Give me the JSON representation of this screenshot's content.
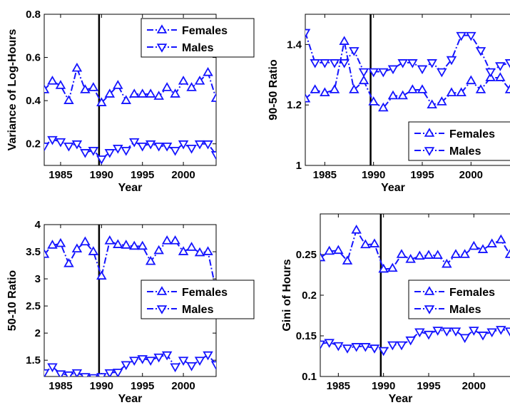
{
  "chart_data": [
    {
      "type": "line",
      "title": "",
      "xlabel": "Year",
      "ylabel": "Variance of Log-Hours",
      "xlim": [
        1983,
        2004
      ],
      "ylim": [
        0.1,
        0.8
      ],
      "xticks": [
        1985,
        1990,
        1995,
        2000
      ],
      "yticks": [
        0.2,
        0.4,
        0.6,
        0.8
      ],
      "xtick_labels": [
        "1985",
        "1990",
        "1995",
        "2000"
      ],
      "ytick_labels": [
        "0.2",
        "0.4",
        "0.6",
        "0.8"
      ],
      "vline": 1989.7,
      "legend_position": "top-right",
      "grid": false,
      "x": [
        1983,
        1984,
        1985,
        1986,
        1987,
        1988,
        1989,
        1990,
        1991,
        1992,
        1993,
        1994,
        1995,
        1996,
        1997,
        1998,
        1999,
        2000,
        2001,
        2002,
        2003,
        2004
      ],
      "series": [
        {
          "name": "Females",
          "marker": "triangle-up",
          "color": "#1414ff",
          "values": [
            0.45,
            0.49,
            0.47,
            0.4,
            0.55,
            0.45,
            0.46,
            0.39,
            0.43,
            0.47,
            0.4,
            0.43,
            0.43,
            0.43,
            0.42,
            0.46,
            0.43,
            0.49,
            0.46,
            0.49,
            0.53,
            0.41
          ]
        },
        {
          "name": "Males",
          "marker": "triangle-down",
          "color": "#1414ff",
          "values": [
            0.19,
            0.22,
            0.21,
            0.19,
            0.2,
            0.16,
            0.17,
            0.13,
            0.16,
            0.18,
            0.17,
            0.21,
            0.19,
            0.2,
            0.19,
            0.19,
            0.17,
            0.2,
            0.18,
            0.2,
            0.2,
            0.15
          ]
        }
      ]
    },
    {
      "type": "line",
      "title": "",
      "xlabel": "Year",
      "ylabel": "90-50 Ratio",
      "xlim": [
        1983,
        2004
      ],
      "ylim": [
        1.0,
        1.5
      ],
      "xticks": [
        1985,
        1990,
        1995,
        2000
      ],
      "yticks": [
        1.0,
        1.2,
        1.4
      ],
      "xtick_labels": [
        "1985",
        "1990",
        "1995",
        "2000"
      ],
      "ytick_labels": [
        "1",
        "1.2",
        "1.4"
      ],
      "vline": 1989.7,
      "legend_position": "bottom-right",
      "grid": false,
      "x": [
        1983,
        1984,
        1985,
        1986,
        1987,
        1988,
        1989,
        1990,
        1991,
        1992,
        1993,
        1994,
        1995,
        1996,
        1997,
        1998,
        1999,
        2000,
        2001,
        2002,
        2003,
        2004
      ],
      "series": [
        {
          "name": "Females",
          "marker": "triangle-up",
          "color": "#1414ff",
          "values": [
            1.22,
            1.25,
            1.24,
            1.25,
            1.41,
            1.25,
            1.28,
            1.21,
            1.19,
            1.23,
            1.23,
            1.25,
            1.25,
            1.2,
            1.21,
            1.24,
            1.24,
            1.28,
            1.25,
            1.29,
            1.29,
            1.25
          ]
        },
        {
          "name": "Males",
          "marker": "triangle-down",
          "color": "#1414ff",
          "values": [
            1.44,
            1.34,
            1.34,
            1.34,
            1.34,
            1.38,
            1.31,
            1.31,
            1.31,
            1.32,
            1.34,
            1.34,
            1.32,
            1.34,
            1.31,
            1.35,
            1.43,
            1.43,
            1.38,
            1.31,
            1.33,
            1.34
          ]
        }
      ]
    },
    {
      "type": "line",
      "title": "",
      "xlabel": "Year",
      "ylabel": "50-10 Ratio",
      "xlim": [
        1983,
        2004
      ],
      "ylim": [
        1.2,
        4.0
      ],
      "xticks": [
        1985,
        1990,
        1995,
        2000
      ],
      "yticks": [
        1.5,
        2.0,
        2.5,
        3.0,
        3.5,
        4.0
      ],
      "xtick_labels": [
        "1985",
        "1990",
        "1995",
        "2000"
      ],
      "ytick_labels": [
        "1.5",
        "2",
        "2.5",
        "3",
        "3.5",
        "4"
      ],
      "vline": 1989.7,
      "legend_position": "center-right",
      "grid": false,
      "x": [
        1983,
        1984,
        1985,
        1986,
        1987,
        1988,
        1989,
        1990,
        1991,
        1992,
        1993,
        1994,
        1995,
        1996,
        1997,
        1998,
        1999,
        2000,
        2001,
        2002,
        2003,
        2004
      ],
      "series": [
        {
          "name": "Females",
          "marker": "triangle-up",
          "color": "#1414ff",
          "values": [
            3.45,
            3.62,
            3.65,
            3.28,
            3.55,
            3.68,
            3.5,
            3.05,
            3.7,
            3.63,
            3.62,
            3.6,
            3.6,
            3.32,
            3.52,
            3.7,
            3.7,
            3.5,
            3.58,
            3.48,
            3.5,
            2.78
          ]
        },
        {
          "name": "Males",
          "marker": "triangle-down",
          "color": "#1414ff",
          "values": [
            1.27,
            1.38,
            1.25,
            1.23,
            1.27,
            1.2,
            1.18,
            1.2,
            1.27,
            1.28,
            1.42,
            1.5,
            1.53,
            1.5,
            1.56,
            1.6,
            1.38,
            1.5,
            1.4,
            1.5,
            1.6,
            1.42
          ]
        }
      ]
    },
    {
      "type": "line",
      "title": "",
      "xlabel": "Year",
      "ylabel": "Gini of Hours",
      "xlim": [
        1983,
        2004
      ],
      "ylim": [
        0.1,
        0.3
      ],
      "xticks": [
        1985,
        1990,
        1995,
        2000
      ],
      "yticks": [
        0.1,
        0.15,
        0.2,
        0.25
      ],
      "xtick_labels": [
        "1985",
        "1990",
        "1995",
        "2000"
      ],
      "ytick_labels": [
        "0.1",
        "0.15",
        "0.2",
        "0.25"
      ],
      "vline": 1989.7,
      "legend_position": "center-right",
      "grid": false,
      "x": [
        1983,
        1984,
        1985,
        1986,
        1987,
        1988,
        1989,
        1990,
        1991,
        1992,
        1993,
        1994,
        1995,
        1996,
        1997,
        1998,
        1999,
        2000,
        2001,
        2002,
        2003,
        2004
      ],
      "series": [
        {
          "name": "Females",
          "marker": "triangle-up",
          "color": "#1414ff",
          "values": [
            0.246,
            0.254,
            0.255,
            0.242,
            0.28,
            0.262,
            0.263,
            0.232,
            0.233,
            0.25,
            0.244,
            0.248,
            0.249,
            0.249,
            0.238,
            0.25,
            0.25,
            0.26,
            0.256,
            0.263,
            0.268,
            0.25
          ]
        },
        {
          "name": "Males",
          "marker": "triangle-down",
          "color": "#1414ff",
          "values": [
            0.14,
            0.142,
            0.138,
            0.135,
            0.137,
            0.137,
            0.135,
            0.132,
            0.139,
            0.139,
            0.145,
            0.155,
            0.152,
            0.157,
            0.156,
            0.156,
            0.148,
            0.157,
            0.151,
            0.155,
            0.158,
            0.156
          ]
        }
      ]
    }
  ]
}
